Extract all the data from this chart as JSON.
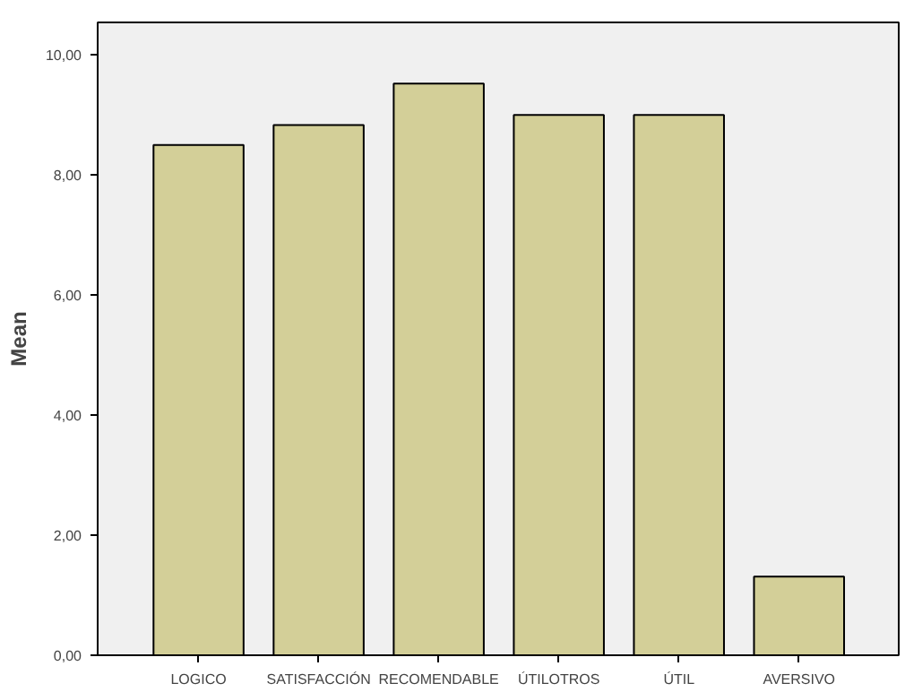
{
  "chart_data": {
    "type": "bar",
    "ylabel": "Mean",
    "categories": [
      "LOGICO",
      "SATISFACCIÓN",
      "RECOMENDABLE",
      "ÚTILOTROS",
      "ÚTIL",
      "AVERSIVO"
    ],
    "values": [
      8.5,
      8.83,
      9.52,
      9.0,
      9.0,
      1.31
    ],
    "color": "#d3cf98",
    "ylim": [
      0,
      10.54
    ],
    "yticks": [
      {
        "value": 0,
        "label": "0,00"
      },
      {
        "value": 2,
        "label": "2,00"
      },
      {
        "value": 4,
        "label": "4,00"
      },
      {
        "value": 6,
        "label": "6,00"
      },
      {
        "value": 8,
        "label": "8,00"
      },
      {
        "value": 10,
        "label": "10,00"
      }
    ],
    "grid": false
  }
}
